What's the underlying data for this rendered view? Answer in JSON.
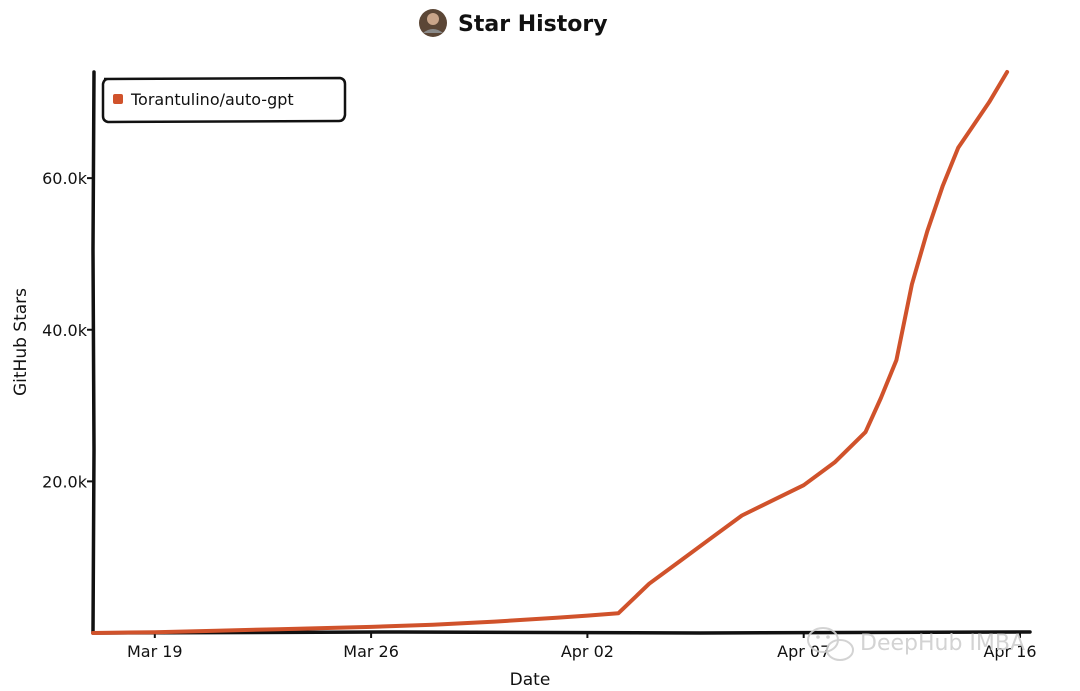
{
  "chart_data": {
    "type": "line",
    "title": "Star History",
    "xlabel": "Date",
    "ylabel": "GitHub Stars",
    "x_tick_labels": [
      "Mar 19",
      "Mar 26",
      "Apr 02",
      "Apr 07",
      "Apr 16"
    ],
    "y_tick_labels": [
      "20.0k",
      "40.0k",
      "60.0k"
    ],
    "y_ticks": [
      20000,
      40000,
      60000
    ],
    "ylim": [
      0,
      74000
    ],
    "xlim": [
      "2023-03-17",
      "2023-04-16"
    ],
    "grid": false,
    "legend_position": "top-left",
    "series": [
      {
        "name": "Torantulino/auto-gpt",
        "color": "#d0522b",
        "points": [
          {
            "x": "2023-03-17",
            "y": 0
          },
          {
            "x": "2023-03-19",
            "y": 100
          },
          {
            "x": "2023-03-21",
            "y": 300
          },
          {
            "x": "2023-03-23",
            "y": 500
          },
          {
            "x": "2023-03-26",
            "y": 800
          },
          {
            "x": "2023-03-28",
            "y": 1100
          },
          {
            "x": "2023-03-30",
            "y": 1500
          },
          {
            "x": "2023-04-01",
            "y": 2000
          },
          {
            "x": "2023-04-02",
            "y": 2300
          },
          {
            "x": "2023-04-03",
            "y": 2600
          },
          {
            "x": "2023-04-04",
            "y": 6500
          },
          {
            "x": "2023-04-05",
            "y": 9500
          },
          {
            "x": "2023-04-06",
            "y": 12500
          },
          {
            "x": "2023-04-07",
            "y": 15500
          },
          {
            "x": "2023-04-08",
            "y": 17500
          },
          {
            "x": "2023-04-09",
            "y": 19500
          },
          {
            "x": "2023-04-10",
            "y": 22500
          },
          {
            "x": "2023-04-11",
            "y": 26500
          },
          {
            "x": "2023-04-11T12:00",
            "y": 31000
          },
          {
            "x": "2023-04-12",
            "y": 36000
          },
          {
            "x": "2023-04-12T12:00",
            "y": 46000
          },
          {
            "x": "2023-04-13",
            "y": 53000
          },
          {
            "x": "2023-04-13T12:00",
            "y": 59000
          },
          {
            "x": "2023-04-14",
            "y": 64000
          },
          {
            "x": "2023-04-15",
            "y": 70000
          },
          {
            "x": "2023-04-15T14:00",
            "y": 74000
          }
        ]
      }
    ]
  },
  "watermark": {
    "text": "DeepHub IMBA",
    "icon": "wechat-icon"
  },
  "avatar": {
    "icon": "avatar-icon"
  }
}
